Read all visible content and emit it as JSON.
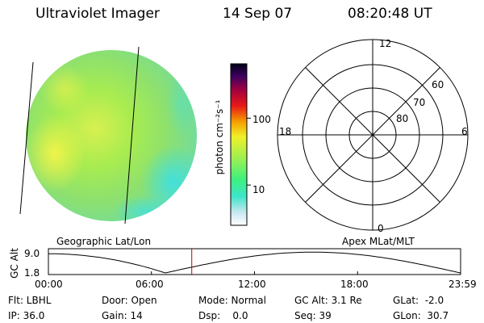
{
  "header": {
    "instrument": "Ultraviolet Imager",
    "date": "14 Sep 07",
    "time": "08:20:48 UT"
  },
  "colorbar": {
    "unit_label": "photon cm⁻²s⁻¹",
    "ticks": [
      {
        "label": "100",
        "value": 100
      },
      {
        "label": "10",
        "value": 10
      }
    ],
    "range": [
      2.5,
      650
    ],
    "scale": "log",
    "colors": [
      "#ffffff",
      "#3ce6c8",
      "#3cf080",
      "#a0f050",
      "#f0f028",
      "#f5a000",
      "#e81818",
      "#a00040",
      "#400060",
      "#000018"
    ]
  },
  "image_panel": {
    "dominant_colors": [
      "#a0e850",
      "#8ce070",
      "#f0f050",
      "#50e0d0"
    ]
  },
  "polar_grid": {
    "mlt_labels": {
      "top": "12",
      "left": "18",
      "right": "6",
      "bottom": "0"
    },
    "lat_labels": [
      "60",
      "70",
      "80"
    ]
  },
  "timeline": {
    "left_label": "Geographic Lat/Lon",
    "right_label": "Apex MLat/MLT",
    "axis_title": "GC Alt",
    "y_ticks": [
      "9.0",
      "1.8"
    ],
    "x_ticks": [
      "00:00",
      "06:00",
      "12:00",
      "18:00",
      "23:59"
    ],
    "current_time_hours": 8.347,
    "marker_color": "#c00000"
  },
  "footer": {
    "filter": "Flt: LBHL",
    "ip": "IP: 36.0",
    "door": "Door: Open",
    "gain": "Gain: 14",
    "mode": "Mode: Normal",
    "dsp": "Dsp:    0.0",
    "gc_alt": "GC Alt: 3.1 Re",
    "seq": "Seq: 39",
    "glat": "GLat:  -2.0",
    "glon": "GLon:  30.7"
  }
}
